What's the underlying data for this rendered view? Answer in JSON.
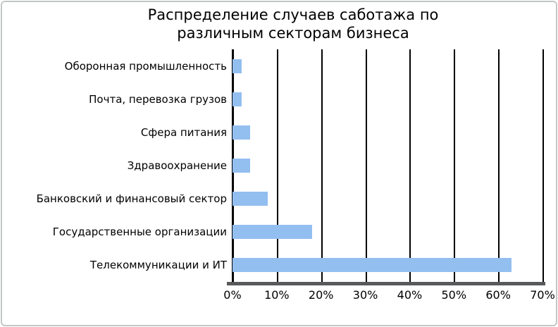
{
  "frame": {
    "border_color": "#c3c6c7",
    "background": "#ffffff"
  },
  "chart_data": {
    "type": "bar",
    "orientation": "horizontal",
    "title": "Распределение случаев саботажа по различным секторам бизнеса",
    "title_lines": [
      "Распределение случаев саботажа по",
      "различным секторам бизнеса"
    ],
    "categories": [
      "Оборонная промышленность",
      "Почта, перевозка грузов",
      "Сфера питания",
      "Здравоохранение",
      "Банковский и финансовый сектор",
      "Государственные организации",
      "Телекоммуникации и ИТ"
    ],
    "values": [
      2,
      2,
      4,
      4,
      8,
      18,
      63
    ],
    "value_unit": "%",
    "x_ticks": [
      "0%",
      "10%",
      "20%",
      "30%",
      "40%",
      "50%",
      "60%",
      "70%"
    ],
    "xlim": [
      0,
      70
    ],
    "grid": true,
    "legend": false,
    "bar_color": "#93bef0",
    "gridline_color": "#000000",
    "axis_line_color": "#58595b",
    "text_color": "#000000"
  }
}
